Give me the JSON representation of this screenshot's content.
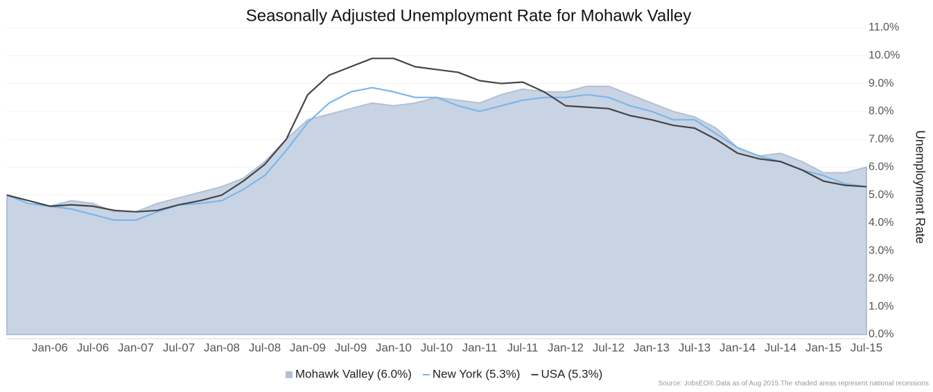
{
  "chart_data": {
    "type": "line",
    "title": "Seasonally Adjusted Unemployment Rate for Mohawk Valley",
    "y_axis_label": "Unemployment Rate",
    "source": "Source: JobsEO®.Data as of Aug 2015.The shaded areas represent national recessions",
    "categories": [
      null,
      null,
      "Jan-06",
      null,
      "Jul-06",
      null,
      "Jan-07",
      null,
      "Jul-07",
      null,
      "Jan-08",
      null,
      "Jul-08",
      null,
      "Jan-09",
      null,
      "Jul-09",
      null,
      "Jan-10",
      null,
      "Jul-10",
      null,
      "Jan-11",
      null,
      "Jul-11",
      null,
      "Jan-12",
      null,
      "Jul-12",
      null,
      "Jan-13",
      null,
      "Jul-13",
      null,
      "Jan-14",
      null,
      "Jul-14",
      null,
      "Jan-15",
      null,
      "Jul-15"
    ],
    "series": [
      {
        "name": "Mohawk Valley (6.0%)",
        "color": "#c8d4e3",
        "style": "area",
        "values": [
          5.0,
          4.7,
          4.6,
          4.8,
          4.7,
          4.4,
          4.4,
          4.7,
          4.9,
          5.1,
          5.3,
          5.6,
          6.2,
          7.0,
          7.7,
          7.9,
          8.1,
          8.3,
          8.2,
          8.3,
          8.5,
          8.4,
          8.3,
          8.6,
          8.8,
          8.7,
          8.7,
          8.9,
          8.9,
          8.6,
          8.3,
          8.0,
          7.8,
          7.4,
          6.7,
          6.4,
          6.5,
          6.2,
          5.8,
          5.8,
          6.0
        ]
      },
      {
        "name": "New York (5.3%)",
        "color": "#7cb5ec",
        "style": "line",
        "values": [
          5.0,
          4.7,
          4.6,
          4.5,
          4.3,
          4.1,
          4.1,
          4.4,
          4.65,
          4.7,
          4.8,
          5.2,
          5.7,
          6.6,
          7.6,
          8.3,
          8.7,
          8.85,
          8.7,
          8.5,
          8.5,
          8.2,
          8.0,
          8.2,
          8.4,
          8.5,
          8.5,
          8.6,
          8.5,
          8.2,
          8.0,
          7.7,
          7.7,
          7.2,
          6.7,
          6.4,
          6.2,
          5.9,
          5.7,
          5.4,
          5.3
        ]
      },
      {
        "name": "USA (5.3%)",
        "color": "#434348",
        "style": "line",
        "values": [
          5.0,
          4.8,
          4.6,
          4.65,
          4.6,
          4.45,
          4.4,
          4.45,
          4.65,
          4.8,
          5.0,
          5.5,
          6.1,
          7.0,
          8.6,
          9.3,
          9.6,
          9.9,
          9.9,
          9.6,
          9.5,
          9.4,
          9.1,
          9.0,
          9.05,
          8.7,
          8.2,
          8.15,
          8.1,
          7.85,
          7.7,
          7.5,
          7.4,
          7.0,
          6.5,
          6.3,
          6.2,
          5.9,
          5.5,
          5.35,
          5.3
        ]
      }
    ],
    "ylim": [
      0,
      11
    ],
    "yticks": [
      {
        "value": 0,
        "label": "0.0%"
      },
      {
        "value": 1,
        "label": "1.0%"
      },
      {
        "value": 2,
        "label": "2.0%"
      },
      {
        "value": 3,
        "label": "3.0%"
      },
      {
        "value": 4,
        "label": "4.0%"
      },
      {
        "value": 5,
        "label": "5.0%"
      },
      {
        "value": 6,
        "label": "6.0%"
      },
      {
        "value": 7,
        "label": "7.0%"
      },
      {
        "value": 8,
        "label": "8.0%"
      },
      {
        "value": 9,
        "label": "9.0%"
      },
      {
        "value": 10,
        "label": "10.0%"
      },
      {
        "value": 11,
        "label": "11.0%"
      }
    ],
    "grid": true,
    "legend": "bottom"
  }
}
